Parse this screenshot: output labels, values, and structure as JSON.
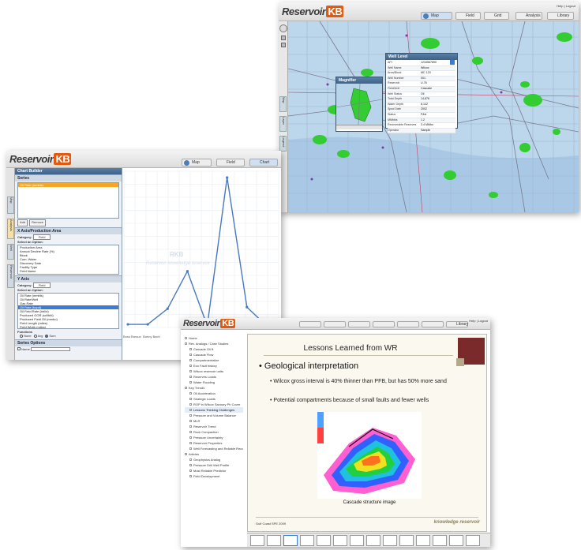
{
  "colors": {
    "accent": "#e05a10",
    "map_water": "#b8d4ea",
    "map_field": "#33cc33",
    "line_blue": "#4a78c0",
    "slide_bg": "#fbf8ef",
    "slide_brown": "#7a2a2a"
  },
  "map_window": {
    "logo_main": "Reservoir",
    "logo_kb": "KB",
    "toolbar_tabs": [
      "Map",
      "Field",
      "Grid",
      "Analysis",
      "Library"
    ],
    "top_right": "Help | Logout",
    "side_tabs": [
      "Map",
      "Layer",
      "Legend"
    ],
    "magnifier_title": "Magnifier",
    "well_popup": {
      "title": "Well Level",
      "rows": [
        {
          "k": "API",
          "v": "1234567890"
        },
        {
          "k": "Well Name",
          "v": "Wilcox"
        },
        {
          "k": "Area/Block",
          "v": "MC 123"
        },
        {
          "k": "Well Number",
          "v": "001"
        },
        {
          "k": "Reservoir",
          "v": "U-76"
        },
        {
          "k": "Field/Unit",
          "v": "Cascade"
        },
        {
          "k": "Well Status",
          "v": "Oil"
        },
        {
          "k": "Total Depth",
          "v": "14,876"
        },
        {
          "k": "Water Depth",
          "v": "8,142"
        },
        {
          "k": "Spud Date",
          "v": "2002"
        },
        {
          "k": "Status",
          "v": "P&A"
        },
        {
          "k": "MMbbls",
          "v": "1.2"
        },
        {
          "k": "Recoverable Reserves",
          "v": "3.4 MMbo"
        },
        {
          "k": "Operator",
          "v": "Sample"
        }
      ]
    }
  },
  "chart_window": {
    "logo_main": "Reservoir",
    "logo_kb": "KB",
    "toolbar_tabs": [
      "Map",
      "Field",
      "Chart"
    ],
    "builder_title": "Chart Builder",
    "series_header": "Series",
    "series_selected": "Oil Rate (mmbls)",
    "btn_add": "Add",
    "btn_remove": "Remove",
    "x_header": "X Axis/Production Area",
    "x_category_label": "Category:",
    "x_category_value": "Field",
    "x_select_label": "Select an Option:",
    "x_options": [
      "Production Area",
      "Annual Decline Rate (%)",
      "Block",
      "Cum. Water",
      "Discovery Date",
      "Facility Type",
      "Field Name",
      "Field Recoverable Reserves (mmboe)",
      "Field Status"
    ],
    "y_header": "Y Axis",
    "y_category_label": "Category:",
    "y_category_value": "Field",
    "y_select_label": "Select an Option:",
    "y_options": [
      "Oil Rate (mmbls)",
      "Oil Rate/Well",
      "Gas Rate",
      "Oil Rate (bopd)",
      "Oil Field Rate (bbl/d)",
      "Produced GOR (scf/bbl)",
      "Produced Field Oil (mmbo)",
      "Field Length (miles)",
      "Field Width (miles)",
      "Water Depth (ft)"
    ],
    "y_selected_index": 3,
    "functions_label": "Functions",
    "fn_options": [
      "None",
      "Avg",
      "Sum"
    ],
    "fn_selected": "Sum",
    "series_options_header": "Series Options",
    "series_opt_name": "Name",
    "watermark_logo": "RKB",
    "watermark_text": "Reservoir knowledge reservoir",
    "side_tabs": [
      "Map",
      "Analysis",
      "Well",
      "Reservoir"
    ]
  },
  "chart_data": {
    "type": "line",
    "categories": [
      "Boss Breaux",
      "Bunny Bach",
      "",
      "",
      "",
      "",
      "",
      ""
    ],
    "values": [
      2,
      2,
      12,
      36,
      1,
      96,
      13,
      1
    ],
    "ylim": [
      0,
      100
    ]
  },
  "slide_window": {
    "logo_main": "Reservoir",
    "logo_kb": "KB",
    "toolbar_tabs": [
      "",
      "",
      "",
      "",
      "",
      "",
      "Library"
    ],
    "top_right": "Help | Logout",
    "toc_items": [
      "Home",
      "Rev. Analogs / Case Studies",
      "Cascade Oil ft.",
      "Cascade Flow",
      "Compartmentalize",
      "Eco Fault history",
      "Wilcox reservoir units",
      "Reserves Loads",
      "Water Flooding",
      "Key Trends",
      "Oil Acceleration",
      "Strategic Loads",
      "ROP in Wilcox Savoury Ph Cover",
      "Lessons Thinking Challenges",
      "Pressure and Volume Balance",
      "MLR",
      "Reservoir Trend",
      "Rock Compaction",
      "Pressure Uncertainty",
      "Reservoir Properties",
      "Well Forecasting and Reliable Recovery",
      "Articles",
      "Geophysics Analog",
      "Pressure Drill Well Profile",
      "Most Reliable Predictor",
      "Field Development"
    ],
    "toc_highlight": 13,
    "slide_title": "Lessons Learned from WR",
    "main_bullet": "Geological interpretation",
    "sub_bullets": [
      "Wilcox gross interval is 40% thinner than PFB, but has 50% more sand",
      "Potential compartments because of small faults and fewer wells"
    ],
    "image_caption": "Cascade structure image",
    "footer_left": "Gulf Coast SPE 2009",
    "footer_right": "knowledge reservoir"
  }
}
